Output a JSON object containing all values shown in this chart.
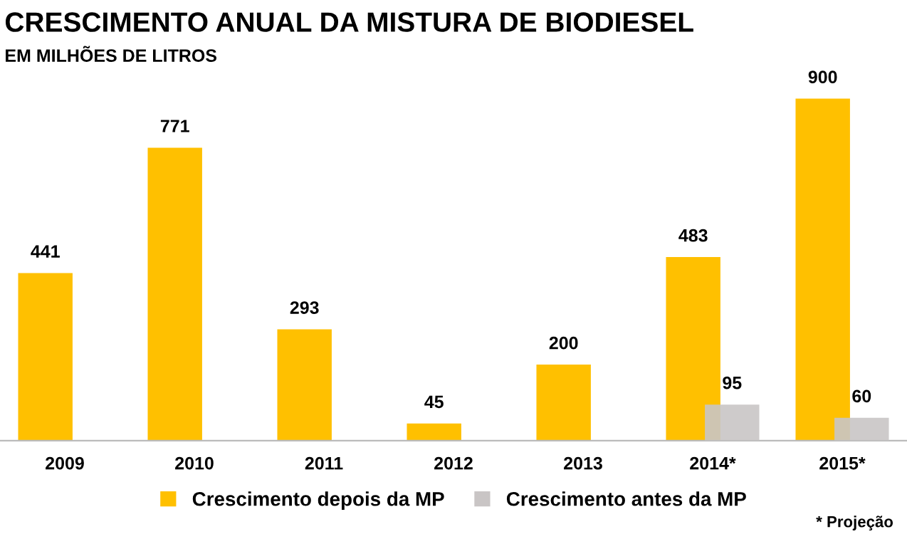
{
  "chart_data": {
    "type": "bar",
    "title": "CRESCIMENTO ANUAL DA MISTURA DE BIODIESEL",
    "subtitle": "EM MILHÕES DE LITROS",
    "categories": [
      "2009",
      "2010",
      "2011",
      "2012",
      "2013",
      "2014*",
      "2015*"
    ],
    "series": [
      {
        "name": "Crescimento depois da MP",
        "color": "#ffc000",
        "values": [
          441,
          771,
          293,
          45,
          200,
          483,
          900
        ]
      },
      {
        "name": "Crescimento antes da MP",
        "color": "#c9c5c5",
        "values": [
          null,
          null,
          null,
          null,
          null,
          95,
          60
        ]
      }
    ],
    "data_labels": true,
    "legend": "bottom",
    "grid": false,
    "annotations": [
      "* Projeção"
    ]
  }
}
